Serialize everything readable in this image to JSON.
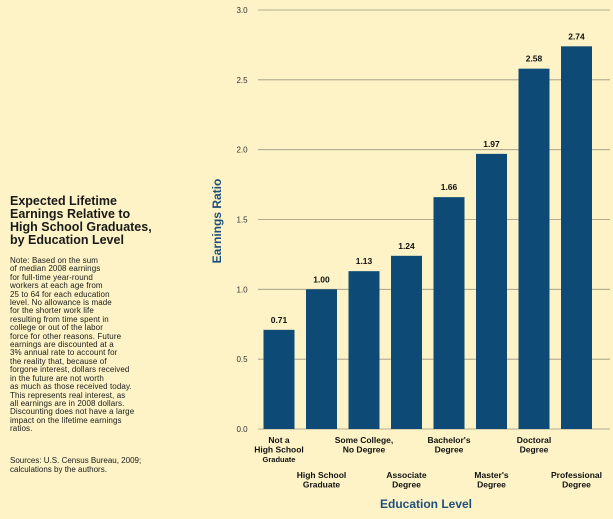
{
  "sidebar": {
    "title": "Expected Lifetime\nEarnings Relative to\nHigh School Graduates,\nby Education Level",
    "note": "Note: Based on the sum\nof median 2008 earnings\nfor full-time year-round\nworkers at each age from\n25 to 64 for each education\nlevel. No allowance is made\nfor the shorter work life\nresulting from time spent in\ncollege or out of the labor\nforce for other reasons. Future\nearnings are discounted at a\n3% annual rate to account for\nthe reality that, because of\nforgone interest, dollars received\nin the future are not worth\nas much as those received today.\nThis represents real interest, as\nall earnings are in 2008 dollars.\nDiscounting does not have a large\nimpact on the lifetime earnings\nratios.",
    "source": "Sources: U.S. Census Bureau, 2009;\ncalculations by the authors."
  },
  "chart_data": {
    "type": "bar",
    "categories": [
      "Not a High School Graduate",
      "High School Graduate",
      "Some College, No Degree",
      "Associate Degree",
      "Bachelor's Degree",
      "Master's Degree",
      "Doctoral Degree",
      "Professional Degree"
    ],
    "category_lines": [
      [
        "Not a",
        "High School",
        "Graduate"
      ],
      [
        "High School",
        "Graduate"
      ],
      [
        "Some College,",
        "No Degree"
      ],
      [
        "Associate",
        "Degree"
      ],
      [
        "Bachelor's",
        "Degree"
      ],
      [
        "Master's",
        "Degree"
      ],
      [
        "Doctoral",
        "Degree"
      ],
      [
        "Professional",
        "Degree"
      ]
    ],
    "values": [
      0.71,
      1.0,
      1.13,
      1.24,
      1.66,
      1.97,
      2.58,
      2.74
    ],
    "value_labels": [
      "0.71",
      "1.00",
      "1.13",
      "1.24",
      "1.66",
      "1.97",
      "2.58",
      "2.74"
    ],
    "ylabel": "Earnings Ratio",
    "xlabel": "Education Level",
    "ylim": [
      0,
      3.0
    ],
    "yticks": [
      "0.0",
      "0.5",
      "1.0",
      "1.5",
      "2.0",
      "2.5",
      "3.0"
    ],
    "grid": true,
    "bar_color": "#0d4a75",
    "grid_color": "#9a9480"
  }
}
